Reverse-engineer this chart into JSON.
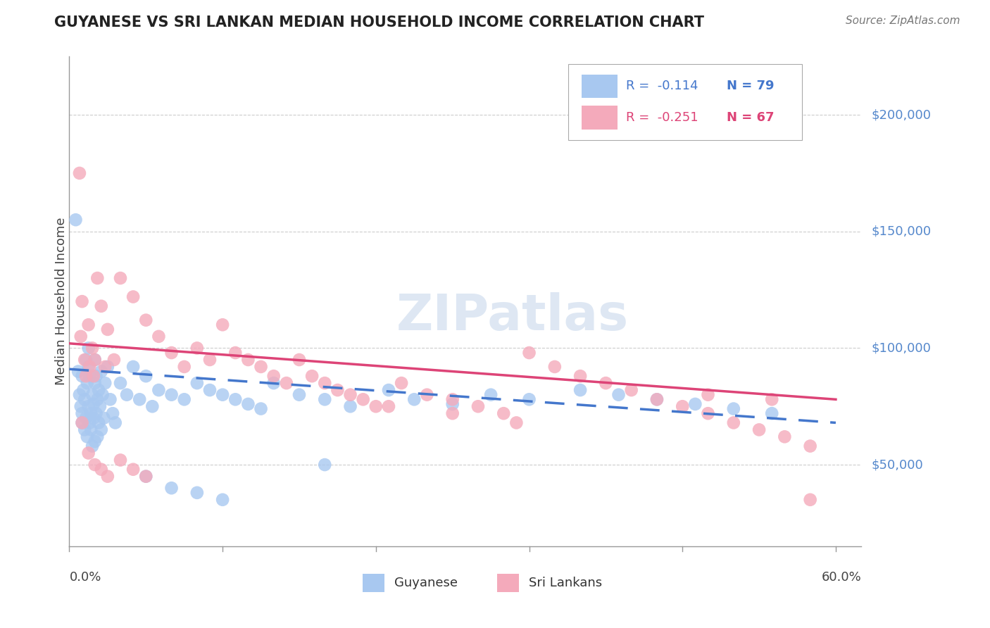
{
  "title": "GUYANESE VS SRI LANKAN MEDIAN HOUSEHOLD INCOME CORRELATION CHART",
  "source": "Source: ZipAtlas.com",
  "ylabel": "Median Household Income",
  "y_ticks": [
    50000,
    100000,
    150000,
    200000
  ],
  "y_tick_labels": [
    "$50,000",
    "$100,000",
    "$150,000",
    "$200,000"
  ],
  "xlim": [
    0.0,
    0.62
  ],
  "ylim": [
    15000,
    225000
  ],
  "legend_blue_r": "R =  -0.114",
  "legend_blue_n": "N = 79",
  "legend_pink_r": "R =  -0.251",
  "legend_pink_n": "N = 67",
  "watermark": "ZIPatlas",
  "blue_color": "#A8C8F0",
  "pink_color": "#F4AABB",
  "blue_line_color": "#4477CC",
  "pink_line_color": "#DD4477",
  "note_color": "#5588CC",
  "grid_color": "#CCCCCC",
  "blue_x": [
    0.005,
    0.007,
    0.008,
    0.009,
    0.01,
    0.01,
    0.01,
    0.011,
    0.012,
    0.012,
    0.013,
    0.013,
    0.014,
    0.014,
    0.015,
    0.015,
    0.015,
    0.016,
    0.016,
    0.017,
    0.017,
    0.018,
    0.018,
    0.019,
    0.019,
    0.02,
    0.02,
    0.02,
    0.021,
    0.021,
    0.022,
    0.022,
    0.023,
    0.023,
    0.024,
    0.025,
    0.025,
    0.026,
    0.027,
    0.028,
    0.03,
    0.032,
    0.034,
    0.036,
    0.04,
    0.045,
    0.05,
    0.055,
    0.06,
    0.065,
    0.07,
    0.08,
    0.09,
    0.1,
    0.11,
    0.12,
    0.13,
    0.14,
    0.15,
    0.16,
    0.18,
    0.2,
    0.22,
    0.25,
    0.27,
    0.3,
    0.33,
    0.36,
    0.4,
    0.43,
    0.46,
    0.49,
    0.52,
    0.55,
    0.06,
    0.08,
    0.1,
    0.12,
    0.2
  ],
  "blue_y": [
    155000,
    90000,
    80000,
    75000,
    88000,
    72000,
    68000,
    82000,
    78000,
    65000,
    95000,
    70000,
    85000,
    62000,
    100000,
    92000,
    75000,
    68000,
    88000,
    72000,
    65000,
    80000,
    58000,
    76000,
    70000,
    95000,
    85000,
    60000,
    88000,
    72000,
    78000,
    62000,
    82000,
    68000,
    75000,
    90000,
    65000,
    80000,
    70000,
    85000,
    92000,
    78000,
    72000,
    68000,
    85000,
    80000,
    92000,
    78000,
    88000,
    75000,
    82000,
    80000,
    78000,
    85000,
    82000,
    80000,
    78000,
    76000,
    74000,
    85000,
    80000,
    78000,
    75000,
    82000,
    78000,
    76000,
    80000,
    78000,
    82000,
    80000,
    78000,
    76000,
    74000,
    72000,
    45000,
    40000,
    38000,
    35000,
    50000
  ],
  "pink_x": [
    0.008,
    0.009,
    0.01,
    0.012,
    0.013,
    0.015,
    0.016,
    0.018,
    0.019,
    0.02,
    0.022,
    0.025,
    0.028,
    0.03,
    0.035,
    0.04,
    0.05,
    0.06,
    0.07,
    0.08,
    0.09,
    0.1,
    0.11,
    0.12,
    0.13,
    0.14,
    0.15,
    0.16,
    0.17,
    0.18,
    0.19,
    0.2,
    0.21,
    0.22,
    0.23,
    0.24,
    0.26,
    0.28,
    0.3,
    0.32,
    0.34,
    0.36,
    0.38,
    0.4,
    0.42,
    0.44,
    0.46,
    0.48,
    0.5,
    0.52,
    0.54,
    0.56,
    0.58,
    0.01,
    0.015,
    0.02,
    0.025,
    0.03,
    0.04,
    0.05,
    0.06,
    0.25,
    0.3,
    0.35,
    0.5,
    0.55,
    0.58
  ],
  "pink_y": [
    175000,
    105000,
    120000,
    95000,
    88000,
    110000,
    92000,
    100000,
    88000,
    95000,
    130000,
    118000,
    92000,
    108000,
    95000,
    130000,
    122000,
    112000,
    105000,
    98000,
    92000,
    100000,
    95000,
    110000,
    98000,
    95000,
    92000,
    88000,
    85000,
    95000,
    88000,
    85000,
    82000,
    80000,
    78000,
    75000,
    85000,
    80000,
    78000,
    75000,
    72000,
    98000,
    92000,
    88000,
    85000,
    82000,
    78000,
    75000,
    72000,
    68000,
    65000,
    62000,
    58000,
    68000,
    55000,
    50000,
    48000,
    45000,
    52000,
    48000,
    45000,
    75000,
    72000,
    68000,
    80000,
    78000,
    35000
  ],
  "blue_trend_x": [
    0.0,
    0.6
  ],
  "blue_trend_y": [
    91000,
    68000
  ],
  "pink_trend_x": [
    0.0,
    0.6
  ],
  "pink_trend_y": [
    102000,
    78000
  ],
  "xtick_positions": [
    0.0,
    0.12,
    0.24,
    0.36,
    0.48,
    0.6
  ]
}
